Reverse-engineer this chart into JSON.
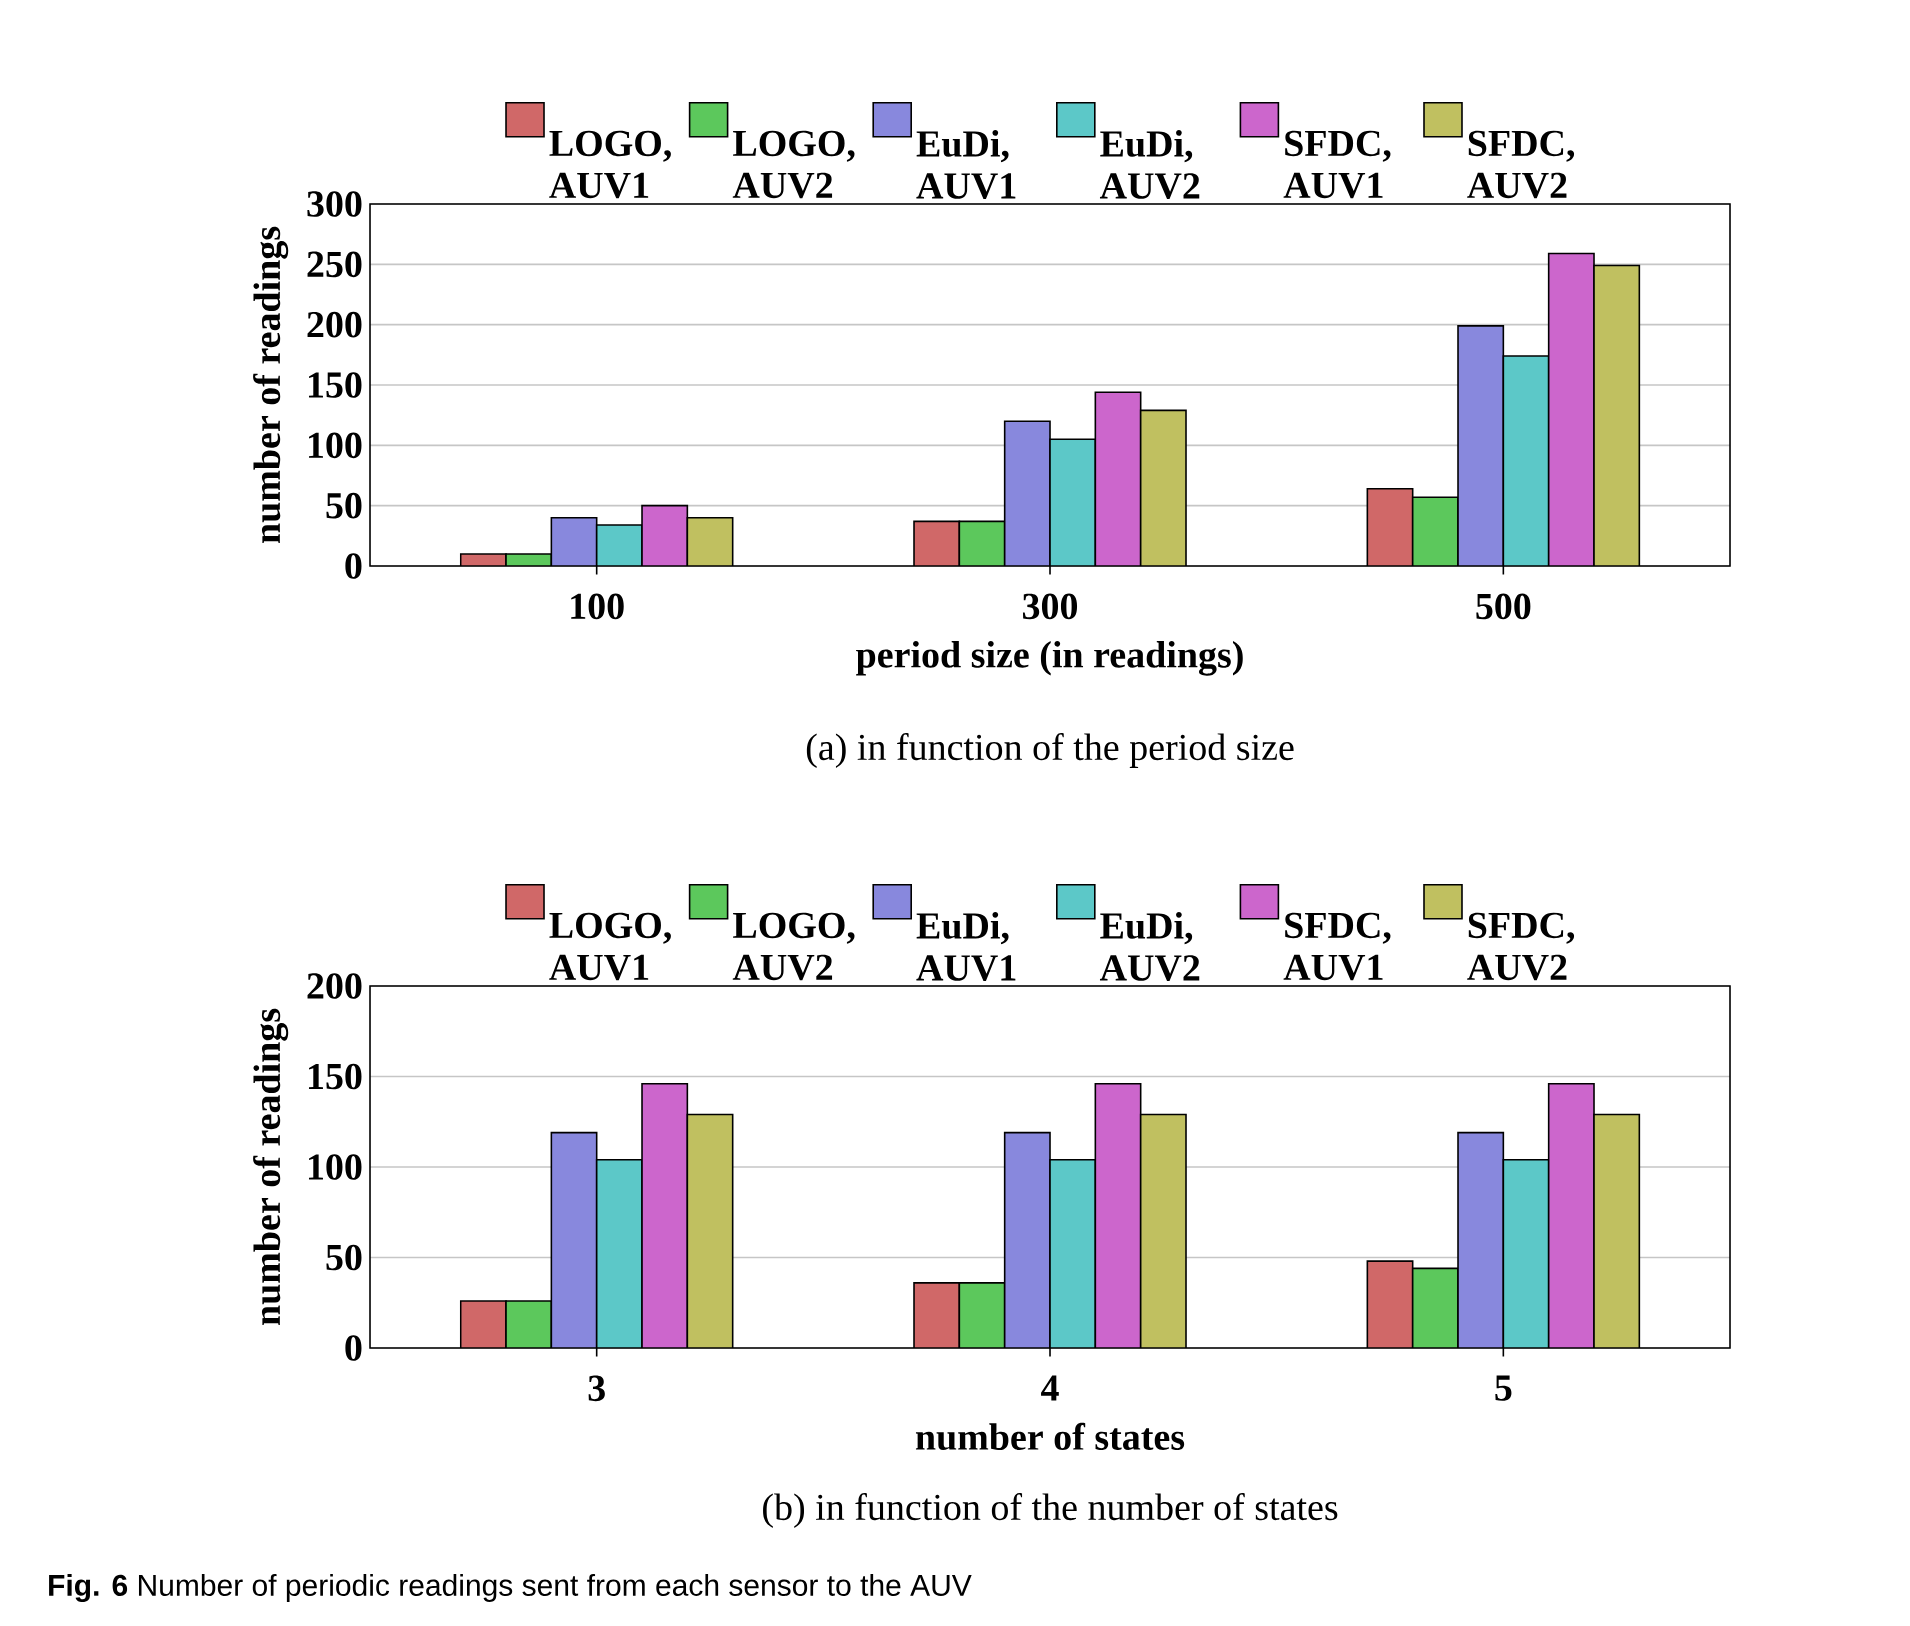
{
  "chart_data": [
    {
      "type": "bar",
      "xlabel": "period size (in readings)",
      "ylabel": "number of readings",
      "categories": [
        "100",
        "300",
        "500"
      ],
      "ylim": [
        0,
        300
      ],
      "yticks": [
        0,
        50,
        100,
        150,
        200,
        250,
        300
      ],
      "grid": "y",
      "legend": "top",
      "series": [
        {
          "name": "LOGO, AUV1",
          "color": "#d06868",
          "values": [
            10,
            37,
            64
          ]
        },
        {
          "name": "LOGO, AUV2",
          "color": "#5cc85c",
          "values": [
            10,
            37,
            57
          ]
        },
        {
          "name": "EuDi, AUV1",
          "color": "#8888dd",
          "values": [
            40,
            120,
            199
          ]
        },
        {
          "name": "EuDi, AUV2",
          "color": "#5cc8c8",
          "values": [
            34,
            105,
            174
          ]
        },
        {
          "name": "SFDC, AUV1",
          "color": "#cc66cc",
          "values": [
            50,
            144,
            259
          ]
        },
        {
          "name": "SFDC, AUV2",
          "color": "#c0c060",
          "values": [
            40,
            129,
            249
          ]
        }
      ],
      "annotations": [
        "(a) in function of the period size"
      ]
    },
    {
      "type": "bar",
      "xlabel": "number of states",
      "ylabel": "number of readings",
      "categories": [
        "3",
        "4",
        "5"
      ],
      "ylim": [
        0,
        200
      ],
      "yticks": [
        0,
        50,
        100,
        150,
        200
      ],
      "grid": "y",
      "legend": "top",
      "series": [
        {
          "name": "LOGO, AUV1",
          "color": "#d06868",
          "values": [
            26,
            36,
            48
          ]
        },
        {
          "name": "LOGO, AUV2",
          "color": "#5cc85c",
          "values": [
            26,
            36,
            44
          ]
        },
        {
          "name": "EuDi, AUV1",
          "color": "#8888dd",
          "values": [
            119,
            119,
            119
          ]
        },
        {
          "name": "EuDi, AUV2",
          "color": "#5cc8c8",
          "values": [
            104,
            104,
            104
          ]
        },
        {
          "name": "SFDC, AUV1",
          "color": "#cc66cc",
          "values": [
            146,
            146,
            146
          ]
        },
        {
          "name": "SFDC, AUV2",
          "color": "#c0c060",
          "values": [
            129,
            129,
            129
          ]
        }
      ],
      "annotations": [
        "(b) in function of the number of states",
        "**Fig. 6** Number of periodic readings sent from each sensor to the AUV"
      ]
    }
  ]
}
